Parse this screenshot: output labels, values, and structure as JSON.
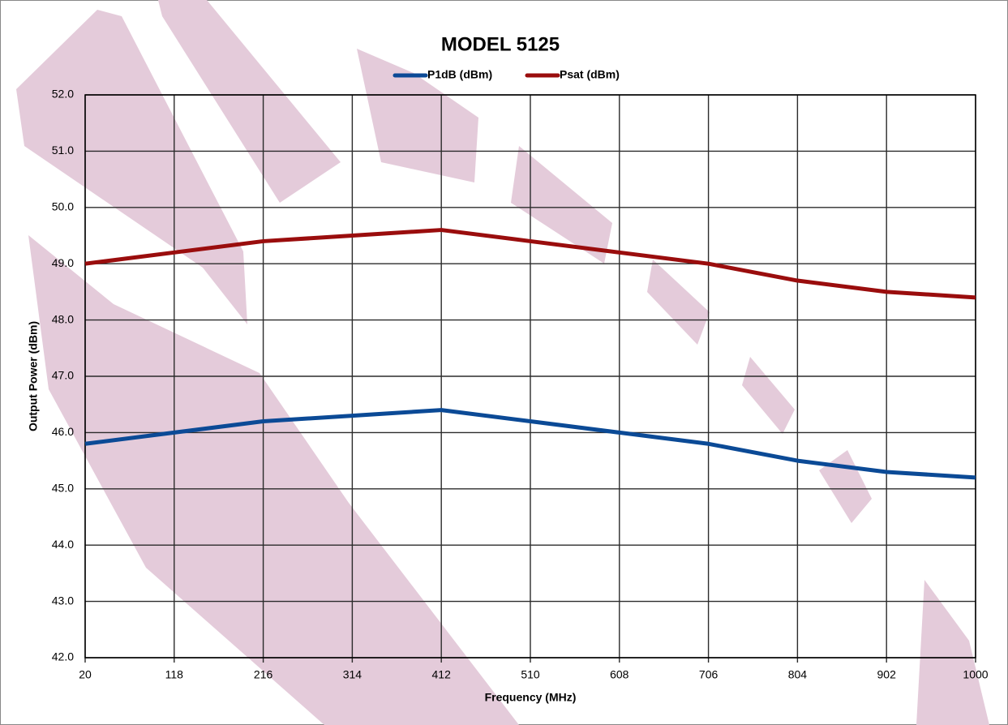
{
  "chart_data": {
    "type": "line",
    "title": "MODEL 5125",
    "x_label": "Frequency (MHz)",
    "y_label": "Output Power (dBm)",
    "x": [
      20,
      118,
      216,
      314,
      412,
      510,
      608,
      706,
      804,
      902,
      1000
    ],
    "series": [
      {
        "name": "P1dB (dBm)",
        "color": "#0b4a96",
        "values": [
          45.8,
          46.0,
          46.2,
          46.3,
          46.4,
          46.2,
          46.0,
          45.8,
          45.5,
          45.3,
          45.2
        ]
      },
      {
        "name": "Psat (dBm)",
        "color": "#9a0d0d",
        "values": [
          49.0,
          49.2,
          49.4,
          49.5,
          49.6,
          49.4,
          49.2,
          49.0,
          48.7,
          48.5,
          48.4
        ]
      }
    ],
    "xlim": [
      20,
      1000
    ],
    "xticks": [
      20,
      118,
      216,
      314,
      412,
      510,
      608,
      706,
      804,
      902,
      1000
    ],
    "ylim": [
      42,
      52
    ],
    "yticks": [
      {
        "value": 42,
        "label": "42.0"
      },
      {
        "value": 43,
        "label": "43.0"
      },
      {
        "value": 44,
        "label": "44.0"
      },
      {
        "value": 45,
        "label": "45.0"
      },
      {
        "value": 46,
        "label": "46.0"
      },
      {
        "value": 47,
        "label": "47.0"
      },
      {
        "value": 48,
        "label": "48.0"
      },
      {
        "value": 49,
        "label": "49.0"
      },
      {
        "value": 50,
        "label": "50.0"
      },
      {
        "value": 51,
        "label": "51.0"
      },
      {
        "value": 52,
        "label": "52.0"
      }
    ],
    "grid": true,
    "legend": "top"
  }
}
